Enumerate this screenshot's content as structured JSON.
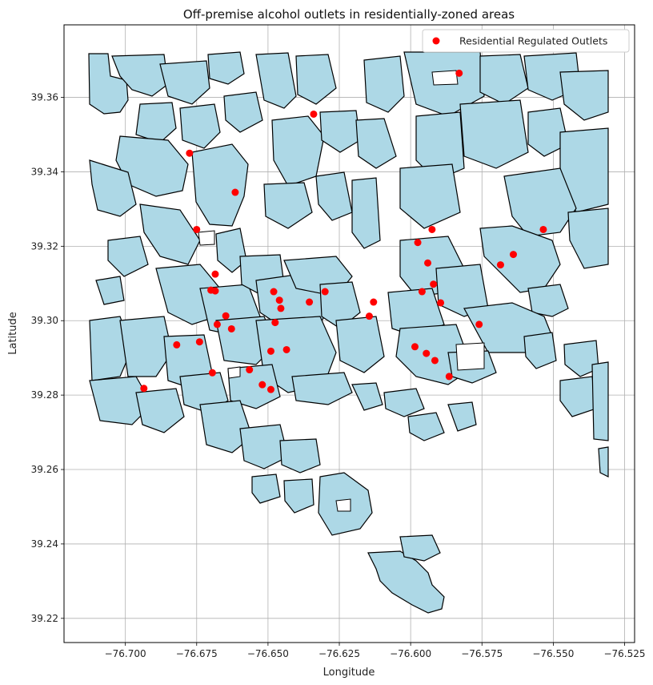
{
  "chart_data": {
    "type": "scatter",
    "title": "Off-premise alcohol outlets in residentially-zoned areas",
    "xlabel": "Longitude",
    "ylabel": "Latitude",
    "xlim": [
      -76.7215,
      -76.5215
    ],
    "ylim": [
      39.2135,
      39.3795
    ],
    "x_ticks": [
      -76.7,
      -76.675,
      -76.65,
      -76.625,
      -76.6,
      -76.575,
      -76.55,
      -76.525
    ],
    "x_tick_labels": [
      "−76.700",
      "−76.675",
      "−76.650",
      "−76.625",
      "−76.600",
      "−76.575",
      "−76.550",
      "−76.525"
    ],
    "y_ticks": [
      39.22,
      39.24,
      39.26,
      39.28,
      39.3,
      39.32,
      39.34,
      39.36
    ],
    "y_tick_labels": [
      "39.22",
      "39.24",
      "39.26",
      "39.28",
      "39.30",
      "39.32",
      "39.34",
      "39.36"
    ],
    "grid": true,
    "legend_position": "top-right",
    "polygon_fill": "#add8e6",
    "polygon_edge": "#000000",
    "series": [
      {
        "name": "Residential Regulated Outlets",
        "color": "#ff0000",
        "points": [
          [
            -76.583,
            39.3665
          ],
          [
            -76.634,
            39.3555
          ],
          [
            -76.6775,
            39.345
          ],
          [
            -76.6615,
            39.3345
          ],
          [
            -76.675,
            39.3245
          ],
          [
            -76.5925,
            39.3245
          ],
          [
            -76.5535,
            39.3245
          ],
          [
            -76.5975,
            39.321
          ],
          [
            -76.564,
            39.3178
          ],
          [
            -76.5685,
            39.315
          ],
          [
            -76.594,
            39.3155
          ],
          [
            -76.6685,
            39.3125
          ],
          [
            -76.6685,
            39.308
          ],
          [
            -76.67,
            39.3082
          ],
          [
            -76.648,
            39.3078
          ],
          [
            -76.63,
            39.3078
          ],
          [
            -76.596,
            39.3078
          ],
          [
            -76.592,
            39.3098
          ],
          [
            -76.646,
            39.3055
          ],
          [
            -76.6355,
            39.305
          ],
          [
            -76.613,
            39.305
          ],
          [
            -76.5895,
            39.3048
          ],
          [
            -76.6455,
            39.3033
          ],
          [
            -76.6145,
            39.3012
          ],
          [
            -76.6648,
            39.3013
          ],
          [
            -76.6475,
            39.2995
          ],
          [
            -76.6678,
            39.299
          ],
          [
            -76.6628,
            39.2978
          ],
          [
            -76.576,
            39.299
          ],
          [
            -76.682,
            39.2935
          ],
          [
            -76.674,
            39.2943
          ],
          [
            -76.5985,
            39.293
          ],
          [
            -76.649,
            39.2918
          ],
          [
            -76.6435,
            39.2922
          ],
          [
            -76.5945,
            39.2912
          ],
          [
            -76.5915,
            39.2893
          ],
          [
            -76.6695,
            39.286
          ],
          [
            -76.6565,
            39.2868
          ],
          [
            -76.5865,
            39.285
          ],
          [
            -76.652,
            39.2828
          ],
          [
            -76.6935,
            39.2818
          ],
          [
            -76.649,
            39.2815
          ]
        ]
      }
    ]
  },
  "legend": {
    "label": "Residential Regulated Outlets"
  }
}
